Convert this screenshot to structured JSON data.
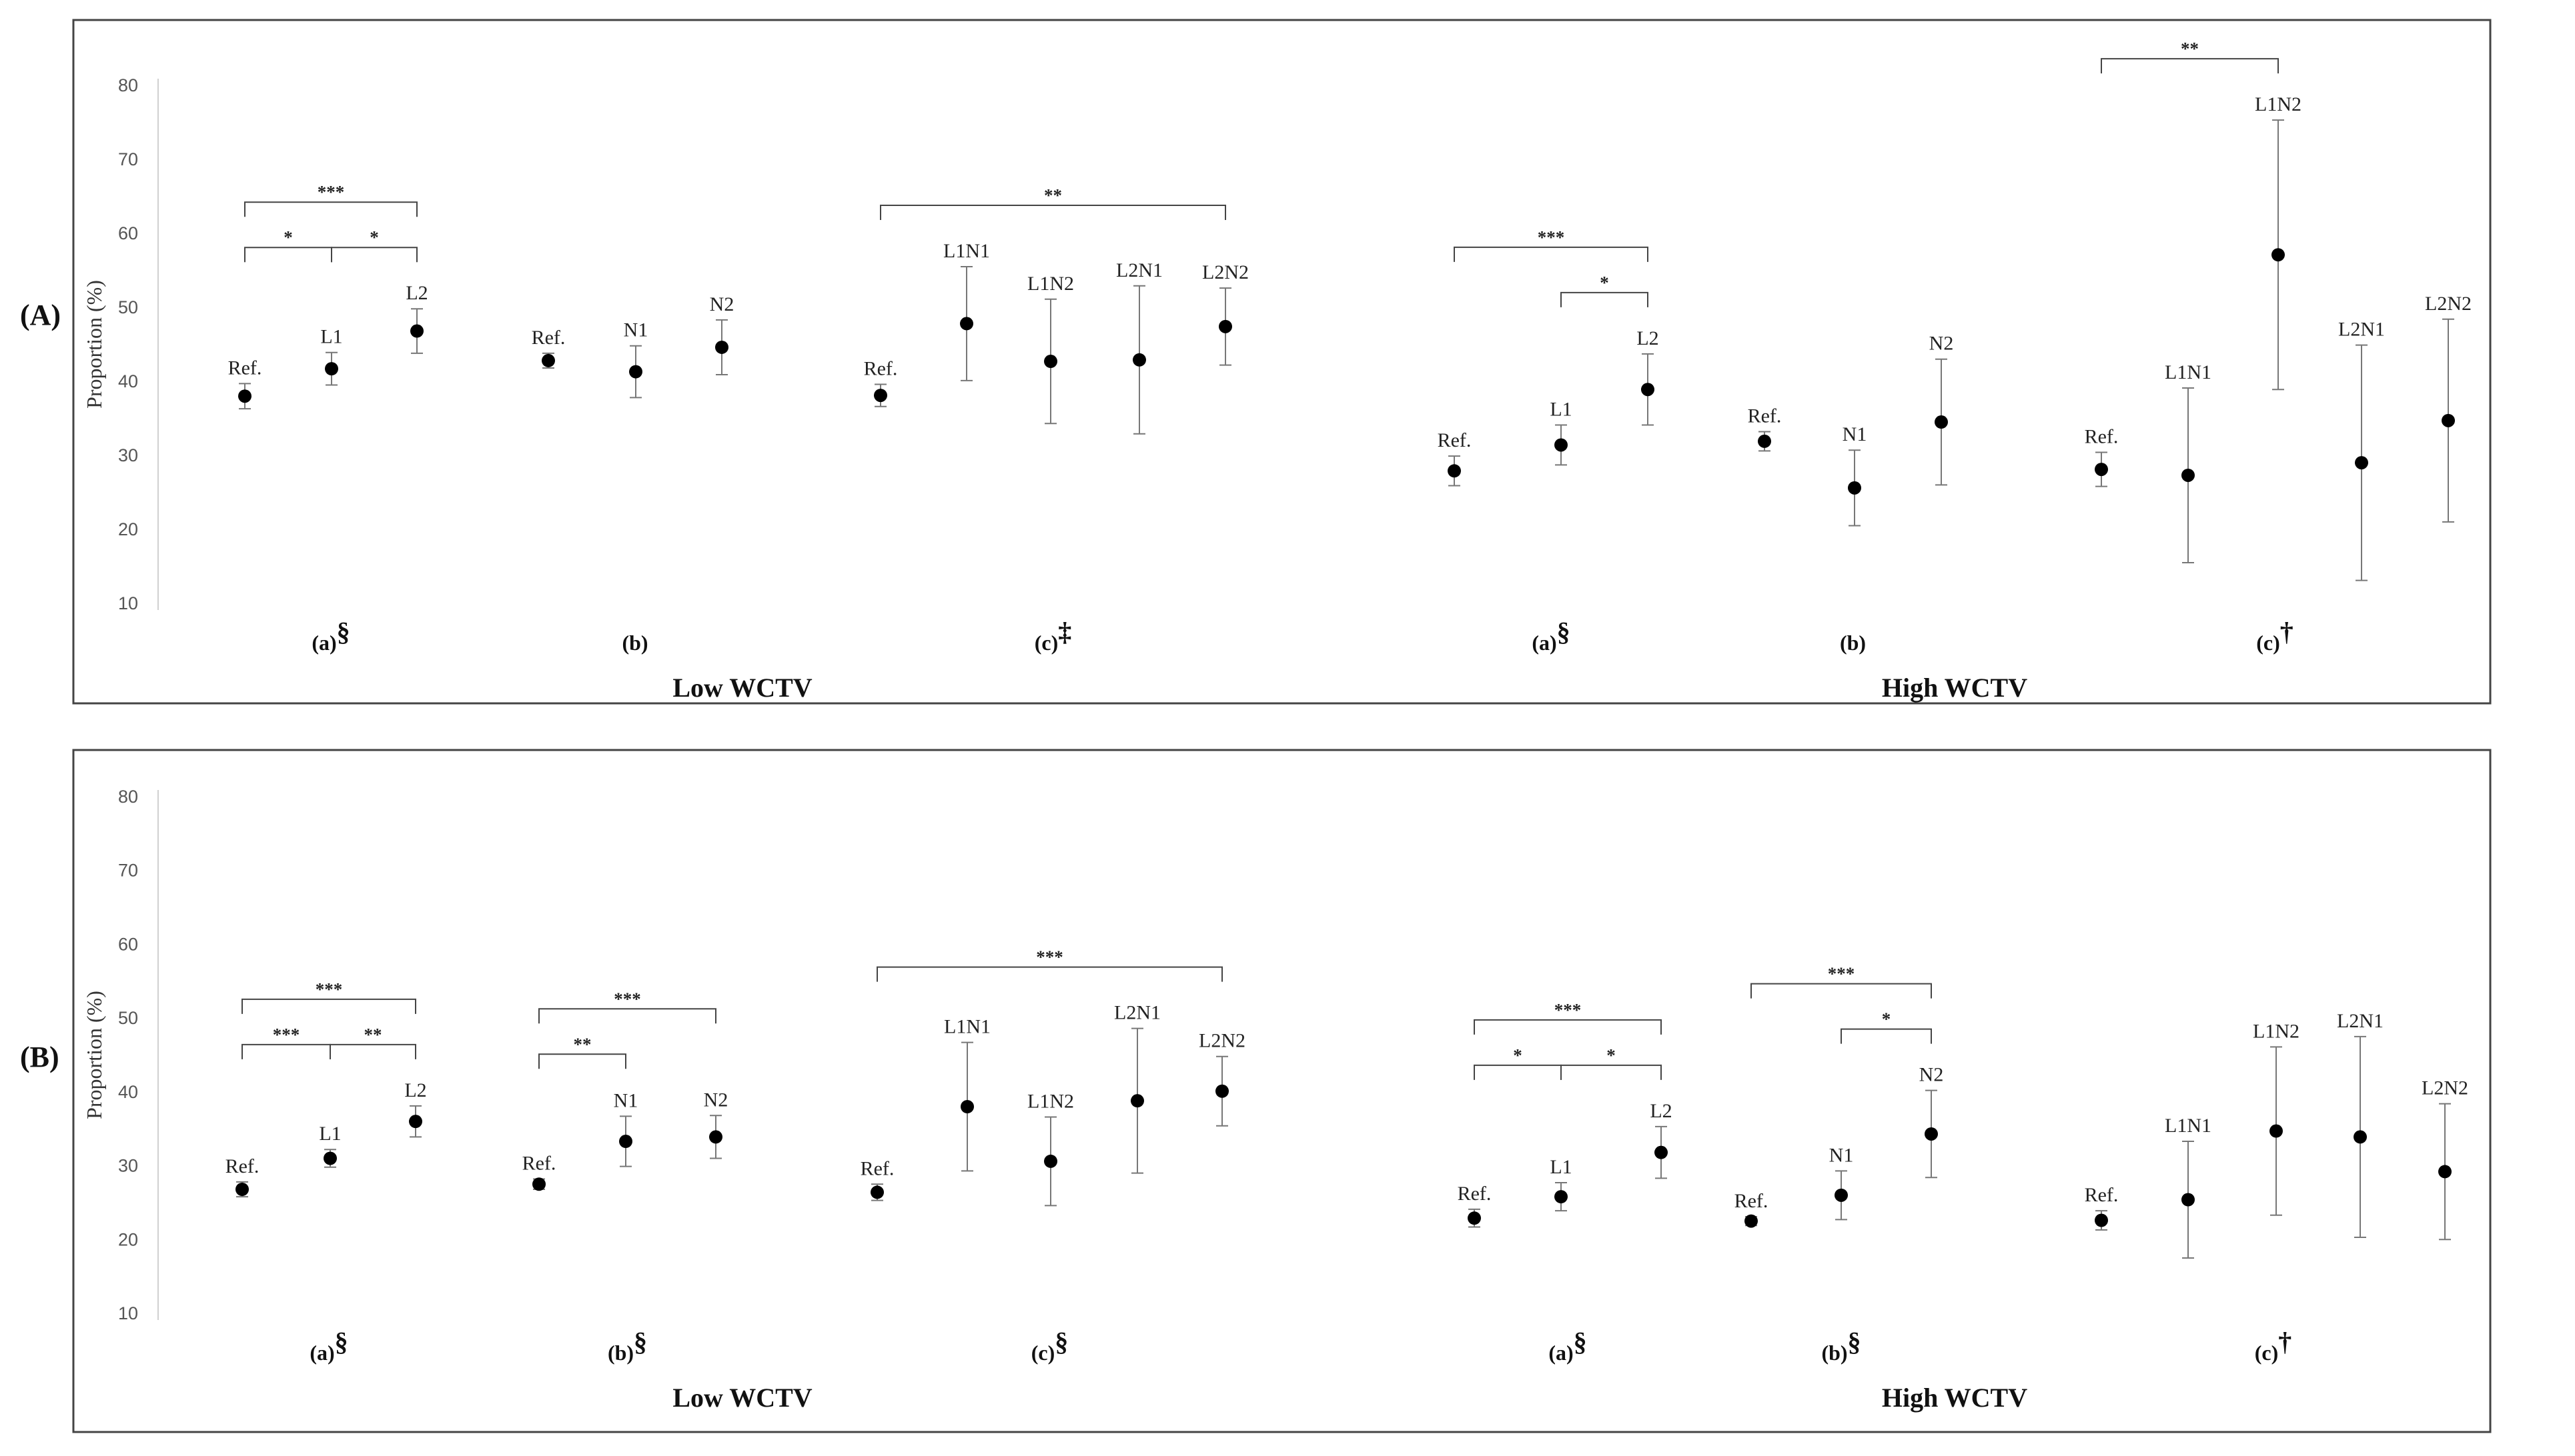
{
  "chart_data": [
    {
      "type": "scatter",
      "panel_label": "(A)",
      "ylabel": "Proportion (%)",
      "ylim": [
        10,
        80
      ],
      "yticks": [
        10,
        20,
        30,
        40,
        50,
        60,
        70,
        80
      ],
      "sections": [
        "Low WCTV",
        "High WCTV"
      ],
      "groups": [
        {
          "label": "(a)",
          "symbol": "§",
          "section": "Low WCTV",
          "points": [
            {
              "label": "Ref.",
              "y": 38.0,
              "low": 36.3,
              "high": 39.7
            },
            {
              "label": "L1",
              "y": 41.7,
              "low": 39.5,
              "high": 43.9
            },
            {
              "label": "L2",
              "y": 46.8,
              "low": 43.8,
              "high": 49.8
            }
          ],
          "sig": [
            {
              "from": 0,
              "to": 1,
              "text": "*"
            },
            {
              "from": 1,
              "to": 2,
              "text": "*"
            },
            {
              "from": 0,
              "to": 2,
              "text": "***"
            }
          ]
        },
        {
          "label": "(b)",
          "symbol": "",
          "section": "Low WCTV",
          "points": [
            {
              "label": "Ref.",
              "y": 42.8,
              "low": 41.8,
              "high": 43.8
            },
            {
              "label": "N1",
              "y": 41.3,
              "low": 37.8,
              "high": 44.8
            },
            {
              "label": "N2",
              "y": 44.6,
              "low": 40.9,
              "high": 48.3
            }
          ],
          "sig": []
        },
        {
          "label": "(c)",
          "symbol": "‡",
          "section": "Low WCTV",
          "points": [
            {
              "label": "Ref.",
              "y": 38.1,
              "low": 36.6,
              "high": 39.6
            },
            {
              "label": "L1N1",
              "y": 47.8,
              "low": 40.1,
              "high": 55.5
            },
            {
              "label": "L1N2",
              "y": 42.7,
              "low": 34.3,
              "high": 51.1
            },
            {
              "label": "L2N1",
              "y": 42.9,
              "low": 32.9,
              "high": 52.9
            },
            {
              "label": "L2N2",
              "y": 47.4,
              "low": 42.2,
              "high": 52.6
            }
          ],
          "sig": [
            {
              "from": 0,
              "to": 4,
              "text": "**"
            }
          ]
        },
        {
          "label": "(a)",
          "symbol": "§",
          "section": "High WCTV",
          "points": [
            {
              "label": "Ref.",
              "y": 27.9,
              "low": 25.9,
              "high": 29.9
            },
            {
              "label": "L1",
              "y": 31.4,
              "low": 28.7,
              "high": 34.1
            },
            {
              "label": "L2",
              "y": 38.9,
              "low": 34.1,
              "high": 43.7
            }
          ],
          "sig": [
            {
              "from": 1,
              "to": 2,
              "text": "*"
            },
            {
              "from": 0,
              "to": 2,
              "text": "***"
            }
          ]
        },
        {
          "label": "(b)",
          "symbol": "",
          "section": "High WCTV",
          "points": [
            {
              "label": "Ref.",
              "y": 31.9,
              "low": 30.6,
              "high": 33.2
            },
            {
              "label": "N1",
              "y": 25.6,
              "low": 20.5,
              "high": 30.7
            },
            {
              "label": "N2",
              "y": 34.5,
              "low": 26.0,
              "high": 43.0
            }
          ],
          "sig": []
        },
        {
          "label": "(c)",
          "symbol": "†",
          "section": "High WCTV",
          "points": [
            {
              "label": "Ref.",
              "y": 28.1,
              "low": 25.8,
              "high": 30.4
            },
            {
              "label": "L1N1",
              "y": 27.3,
              "low": 15.5,
              "high": 39.1
            },
            {
              "label": "L1N2",
              "y": 57.1,
              "low": 38.9,
              "high": 75.3
            },
            {
              "label": "L2N1",
              "y": 29.0,
              "low": 13.1,
              "high": 44.9
            },
            {
              "label": "L2N2",
              "y": 34.7,
              "low": 21.0,
              "high": 48.4
            }
          ],
          "sig": [
            {
              "from": 0,
              "to": 2,
              "text": "**"
            }
          ]
        }
      ]
    },
    {
      "type": "scatter",
      "panel_label": "(B)",
      "ylabel": "Proportion (%)",
      "ylim": [
        10,
        80
      ],
      "yticks": [
        10,
        20,
        30,
        40,
        50,
        60,
        70,
        80
      ],
      "sections": [
        "Low WCTV",
        "High WCTV"
      ],
      "groups": [
        {
          "label": "(a)",
          "symbol": "§",
          "section": "Low WCTV",
          "points": [
            {
              "label": "Ref.",
              "y": 26.8,
              "low": 25.8,
              "high": 27.8
            },
            {
              "label": "L1",
              "y": 31.0,
              "low": 29.8,
              "high": 32.2
            },
            {
              "label": "L2",
              "y": 36.0,
              "low": 33.9,
              "high": 38.1
            }
          ],
          "sig": [
            {
              "from": 0,
              "to": 1,
              "text": "***"
            },
            {
              "from": 1,
              "to": 2,
              "text": "**"
            },
            {
              "from": 0,
              "to": 2,
              "text": "***"
            }
          ]
        },
        {
          "label": "(b)",
          "symbol": "§",
          "section": "Low WCTV",
          "points": [
            {
              "label": "Ref.",
              "y": 27.5,
              "low": 26.8,
              "high": 28.2
            },
            {
              "label": "N1",
              "y": 33.3,
              "low": 29.9,
              "high": 36.7
            },
            {
              "label": "N2",
              "y": 33.9,
              "low": 31.0,
              "high": 36.8
            }
          ],
          "sig": [
            {
              "from": 0,
              "to": 1,
              "text": "**"
            },
            {
              "from": 0,
              "to": 2,
              "text": "***"
            }
          ]
        },
        {
          "label": "(c)",
          "symbol": "§",
          "section": "Low WCTV",
          "points": [
            {
              "label": "Ref.",
              "y": 26.4,
              "low": 25.3,
              "high": 27.5
            },
            {
              "label": "L1N1",
              "y": 38.0,
              "low": 29.3,
              "high": 46.7
            },
            {
              "label": "L1N2",
              "y": 30.6,
              "low": 24.6,
              "high": 36.6
            },
            {
              "label": "L2N1",
              "y": 38.8,
              "low": 29.0,
              "high": 48.6
            },
            {
              "label": "L2N2",
              "y": 40.1,
              "low": 35.4,
              "high": 44.8
            }
          ],
          "sig": [
            {
              "from": 0,
              "to": 4,
              "text": "***"
            }
          ]
        },
        {
          "label": "(a)",
          "symbol": "§",
          "section": "High WCTV",
          "points": [
            {
              "label": "Ref.",
              "y": 22.9,
              "low": 21.7,
              "high": 24.1
            },
            {
              "label": "L1",
              "y": 25.8,
              "low": 23.9,
              "high": 27.7
            },
            {
              "label": "L2",
              "y": 31.8,
              "low": 28.3,
              "high": 35.3
            }
          ],
          "sig": [
            {
              "from": 0,
              "to": 1,
              "text": "*"
            },
            {
              "from": 1,
              "to": 2,
              "text": "*"
            },
            {
              "from": 0,
              "to": 2,
              "text": "***"
            }
          ]
        },
        {
          "label": "(b)",
          "symbol": "§",
          "section": "High WCTV",
          "points": [
            {
              "label": "Ref.",
              "y": 22.5,
              "low": 21.9,
              "high": 23.1
            },
            {
              "label": "N1",
              "y": 26.0,
              "low": 22.7,
              "high": 29.3
            },
            {
              "label": "N2",
              "y": 34.3,
              "low": 28.4,
              "high": 40.2
            }
          ],
          "sig": [
            {
              "from": 1,
              "to": 2,
              "text": "*"
            },
            {
              "from": 0,
              "to": 2,
              "text": "***"
            }
          ]
        },
        {
          "label": "(c)",
          "symbol": "†",
          "section": "High WCTV",
          "points": [
            {
              "label": "Ref.",
              "y": 22.6,
              "low": 21.3,
              "high": 23.9
            },
            {
              "label": "L1N1",
              "y": 25.4,
              "low": 17.5,
              "high": 33.3
            },
            {
              "label": "L1N2",
              "y": 34.7,
              "low": 23.3,
              "high": 46.1
            },
            {
              "label": "L2N1",
              "y": 33.9,
              "low": 20.3,
              "high": 47.5
            },
            {
              "label": "L2N2",
              "y": 29.2,
              "low": 20.0,
              "high": 38.4
            }
          ],
          "sig": []
        }
      ]
    }
  ]
}
